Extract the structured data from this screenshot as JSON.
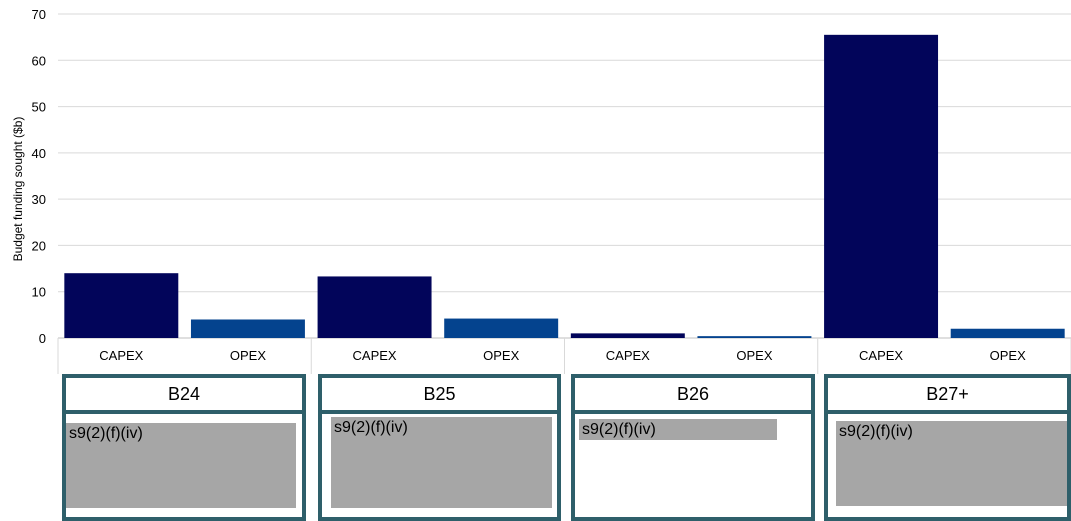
{
  "chart_data": {
    "type": "bar",
    "ylabel": "Budget funding sought ($b)",
    "ylim": [
      0,
      70
    ],
    "yticks": [
      0,
      10,
      20,
      30,
      40,
      50,
      60,
      70
    ],
    "grid": true,
    "categories": [
      "CAPEX",
      "OPEX",
      "CAPEX",
      "OPEX",
      "CAPEX",
      "OPEX",
      "CAPEX",
      "OPEX"
    ],
    "values": [
      14,
      4,
      13.3,
      4.2,
      1,
      0.4,
      65.5,
      2
    ],
    "colors": [
      "#02055a",
      "#04438e",
      "#02055a",
      "#04438e",
      "#02055a",
      "#04438e",
      "#02055a",
      "#04438e"
    ],
    "groups": [
      "B24",
      "B25",
      "B26",
      "B27+"
    ]
  },
  "redactions": [
    "s9(2)(f)(iv)",
    "s9(2)(f)(iv)",
    "s9(2)(f)(iv)",
    "s9(2)(f)(iv)"
  ]
}
